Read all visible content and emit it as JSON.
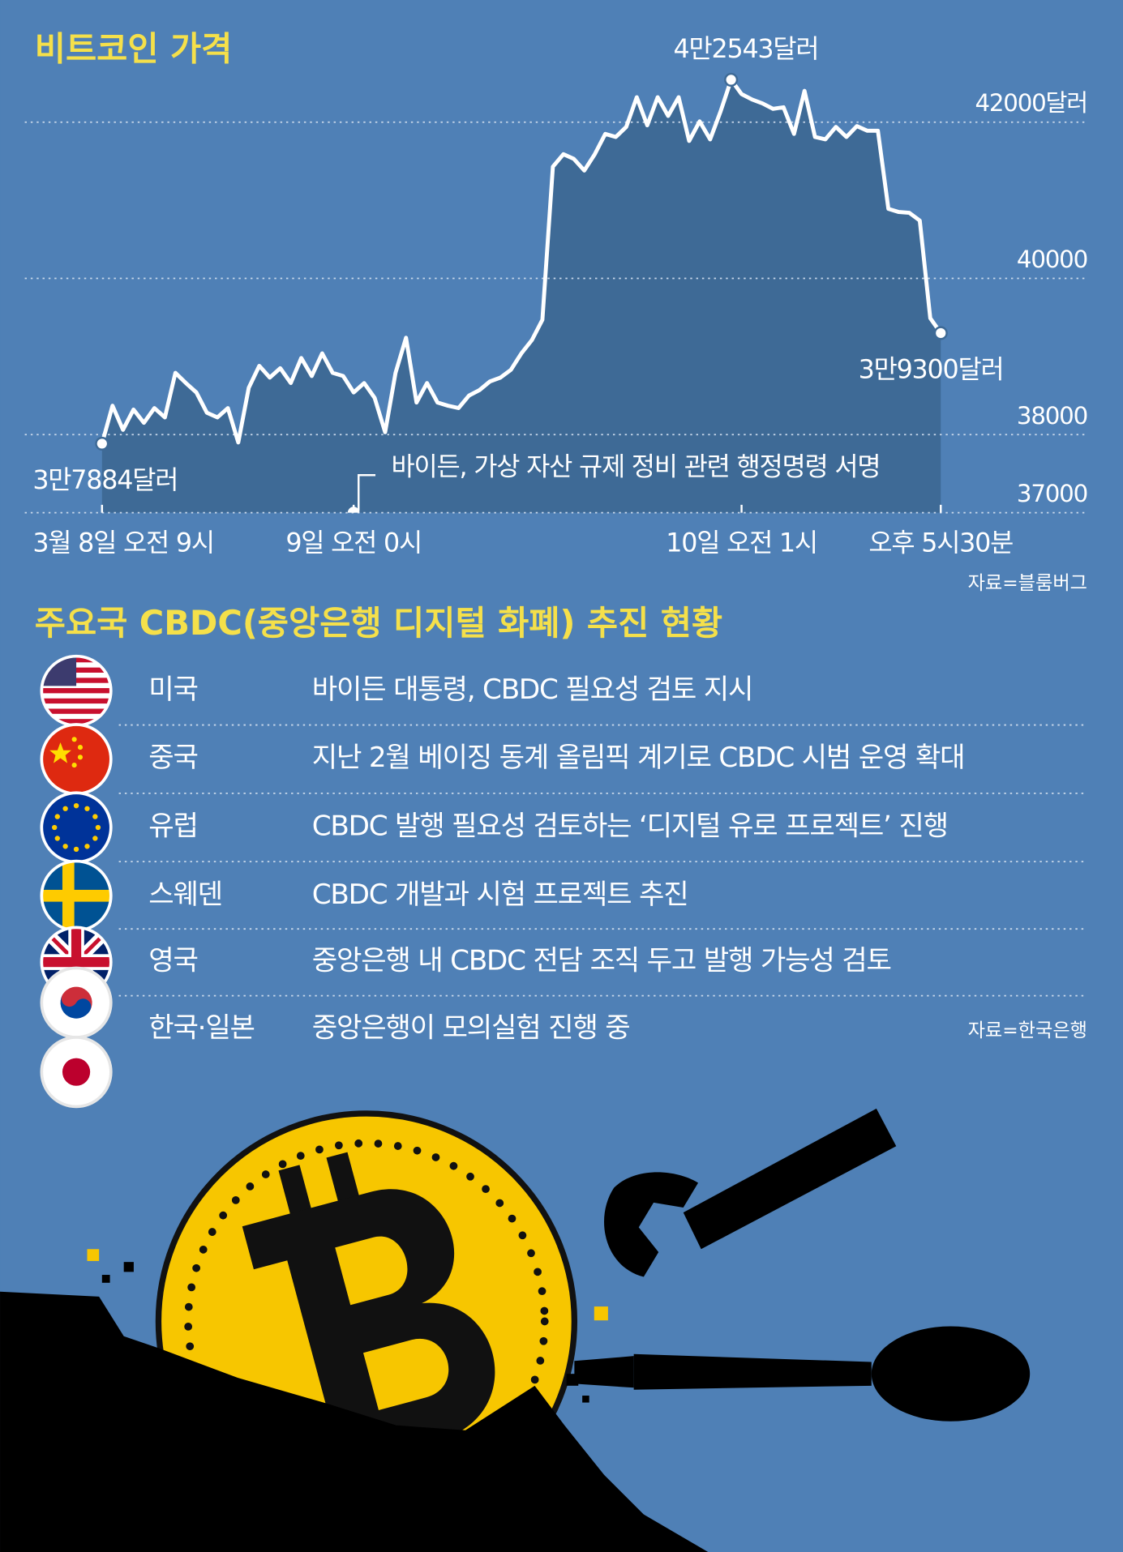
{
  "chart_data": {
    "type": "line",
    "title": "비트코인 가격",
    "categories": [
      "3월 8일 오전 9시",
      null,
      null,
      null,
      null,
      null,
      null,
      null,
      null,
      null,
      null,
      null,
      null,
      null,
      null,
      null,
      null,
      null,
      null,
      null,
      null,
      null,
      null,
      null,
      "9일 오전 0시",
      null,
      null,
      null,
      null,
      null,
      null,
      null,
      null,
      null,
      null,
      null,
      null,
      null,
      null,
      null,
      null,
      null,
      null,
      null,
      null,
      null,
      null,
      null,
      null,
      null,
      null,
      null,
      null,
      null,
      null,
      null,
      null,
      null,
      null,
      null,
      null,
      "10일 오전 1시",
      null,
      null,
      null,
      null,
      null,
      null,
      null,
      null,
      null,
      null,
      null,
      null,
      null,
      null,
      null,
      null,
      null,
      null,
      "오후 5시30분"
    ],
    "values": [
      37884,
      38370,
      38060,
      38320,
      38150,
      38340,
      38220,
      38790,
      38660,
      38540,
      38280,
      38220,
      38340,
      37900,
      38600,
      38880,
      38730,
      38850,
      38660,
      38980,
      38750,
      39040,
      38790,
      38750,
      38540,
      38660,
      38470,
      38030,
      38790,
      39240,
      38410,
      38660,
      38410,
      38370,
      38340,
      38500,
      38570,
      38680,
      38730,
      38830,
      39040,
      39210,
      39470,
      41430,
      41590,
      41530,
      41380,
      41590,
      41850,
      41810,
      41940,
      42320,
      41960,
      42320,
      42080,
      42320,
      41760,
      42010,
      41780,
      42140,
      42543,
      42360,
      42290,
      42240,
      42170,
      42190,
      41850,
      42400,
      41810,
      41780,
      41940,
      41810,
      41950,
      41890,
      41890,
      40890,
      40850,
      40840,
      40740,
      39490,
      39300
    ],
    "value_labels": [
      "3만7884달러",
      null,
      null,
      null,
      null,
      null,
      null,
      null,
      null,
      null,
      null,
      null,
      null,
      null,
      null,
      null,
      null,
      null,
      null,
      null,
      null,
      null,
      null,
      null,
      null,
      null,
      null,
      null,
      null,
      null,
      null,
      null,
      null,
      null,
      null,
      null,
      null,
      null,
      null,
      null,
      null,
      null,
      null,
      null,
      null,
      null,
      null,
      null,
      null,
      null,
      null,
      null,
      null,
      null,
      null,
      null,
      null,
      null,
      null,
      null,
      "4만2543달러",
      null,
      null,
      null,
      null,
      null,
      null,
      null,
      null,
      null,
      null,
      null,
      null,
      null,
      null,
      null,
      null,
      null,
      null,
      null,
      "3만9300달러"
    ],
    "color": "#ffffff",
    "area_color": "#3e6a96",
    "ylim": [
      37000,
      43000
    ],
    "yticks": [
      37000,
      38000,
      40000,
      {
        "value": 42000,
        "label": "42000달러"
      }
    ],
    "grid": true,
    "annotation": "바이든, 가상 자산 규제 정비 관련 행정명령 서명",
    "source": "자료=블룸버그"
  },
  "cbdc": {
    "title": "주요국 CBDC(중앙은행 디지털 화폐) 추진 현황",
    "rows": [
      [
        "미국",
        "바이든 대통령, CBDC 필요성 검토 지시"
      ],
      [
        "중국",
        "지난 2월 베이징 동계 올림픽 계기로 CBDC 시범 운영 확대"
      ],
      [
        "유럽",
        "CBDC 발행 필요성 검토하는 ‘디지털 유로 프로젝트’ 진행"
      ],
      [
        "스웨덴",
        "CBDC 개발과 시험 프로젝트 추진"
      ],
      [
        "영국",
        "중앙은행 내 CBDC 전담 조직 두고 발행 가능성 검토"
      ],
      [
        "한국·일본",
        "중앙은행이 모의실험 진행 중"
      ]
    ],
    "source": "자료=한국은행"
  }
}
